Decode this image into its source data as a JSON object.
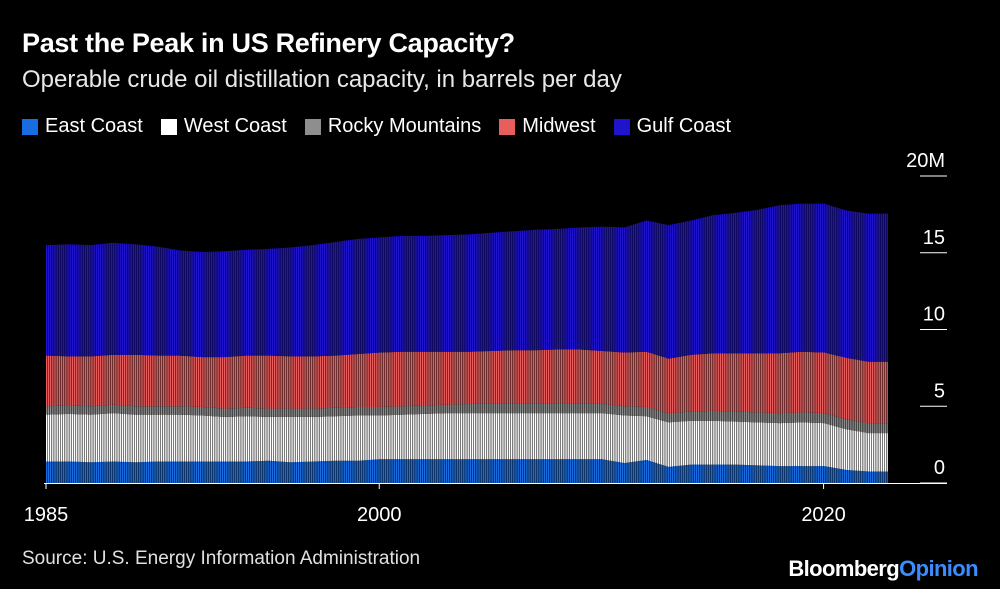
{
  "chart_data": {
    "type": "bar",
    "stacked": true,
    "title": "Past the Peak in US Refinery Capacity?",
    "subtitle": "Operable crude oil distillation capacity, in barrels per day",
    "xlabel": "",
    "ylabel": "",
    "x_ticks": [
      "1985",
      "2000",
      "2020"
    ],
    "x_tick_values": [
      1985,
      2000,
      2020
    ],
    "y_ticks": [
      "20M",
      "15",
      "10",
      "5",
      "0"
    ],
    "y_tick_values": [
      20,
      15,
      10,
      5,
      0
    ],
    "ylim": [
      0,
      20
    ],
    "xlim": [
      1985,
      2022.9
    ],
    "legend_position": "top-left",
    "colors": {
      "east_coast": "#1a6de0",
      "west_coast": "#ffffff",
      "rocky_mountains": "#8e8e8e",
      "midwest": "#e85e5e",
      "gulf_coast": "#1f13cc"
    },
    "legend": [
      "East Coast",
      "West Coast",
      "Rocky Mountains",
      "Midwest",
      "Gulf Coast"
    ],
    "series": [
      {
        "name": "East Coast",
        "color": "#1a6de0",
        "x": [
          1985,
          1986,
          1987,
          1988,
          1989,
          1990,
          1991,
          1992,
          1993,
          1994,
          1995,
          1996,
          1997,
          1998,
          1999,
          2000,
          2001,
          2002,
          2003,
          2004,
          2005,
          2006,
          2007,
          2008,
          2009,
          2010,
          2011,
          2012,
          2013,
          2014,
          2015,
          2016,
          2017,
          2018,
          2019,
          2020,
          2021,
          2022
        ],
        "values": [
          1.4,
          1.4,
          1.35,
          1.4,
          1.35,
          1.4,
          1.4,
          1.4,
          1.4,
          1.4,
          1.45,
          1.35,
          1.4,
          1.45,
          1.45,
          1.55,
          1.55,
          1.55,
          1.55,
          1.55,
          1.55,
          1.55,
          1.55,
          1.55,
          1.55,
          1.55,
          1.3,
          1.5,
          1.05,
          1.2,
          1.2,
          1.2,
          1.15,
          1.1,
          1.1,
          1.1,
          0.85,
          0.75
        ]
      },
      {
        "name": "West Coast",
        "color": "#ffffff",
        "x": [
          1985,
          1986,
          1987,
          1988,
          1989,
          1990,
          1991,
          1992,
          1993,
          1994,
          1995,
          1996,
          1997,
          1998,
          1999,
          2000,
          2001,
          2002,
          2003,
          2004,
          2005,
          2006,
          2007,
          2008,
          2009,
          2010,
          2011,
          2012,
          2013,
          2014,
          2015,
          2016,
          2017,
          2018,
          2019,
          2020,
          2021,
          2022
        ],
        "values": [
          3.05,
          3.1,
          3.1,
          3.15,
          3.1,
          3.05,
          3.05,
          3.0,
          2.9,
          2.95,
          2.85,
          2.95,
          2.9,
          2.9,
          2.95,
          2.85,
          2.9,
          2.95,
          3.0,
          3.0,
          3.0,
          3.0,
          3.0,
          3.0,
          3.0,
          3.0,
          3.1,
          2.85,
          2.9,
          2.85,
          2.85,
          2.8,
          2.8,
          2.8,
          2.85,
          2.8,
          2.65,
          2.5
        ]
      },
      {
        "name": "Rocky Mountains",
        "color": "#8e8e8e",
        "x": [
          1985,
          1986,
          1987,
          1988,
          1989,
          1990,
          1991,
          1992,
          1993,
          1994,
          1995,
          1996,
          1997,
          1998,
          1999,
          2000,
          2001,
          2002,
          2003,
          2004,
          2005,
          2006,
          2007,
          2008,
          2009,
          2010,
          2011,
          2012,
          2013,
          2014,
          2015,
          2016,
          2017,
          2018,
          2019,
          2020,
          2021,
          2022
        ],
        "values": [
          0.55,
          0.55,
          0.55,
          0.55,
          0.55,
          0.55,
          0.55,
          0.55,
          0.55,
          0.55,
          0.55,
          0.55,
          0.55,
          0.55,
          0.55,
          0.55,
          0.55,
          0.55,
          0.55,
          0.6,
          0.6,
          0.6,
          0.6,
          0.6,
          0.6,
          0.6,
          0.6,
          0.6,
          0.6,
          0.6,
          0.65,
          0.65,
          0.65,
          0.65,
          0.65,
          0.65,
          0.65,
          0.65
        ]
      },
      {
        "name": "Midwest",
        "color": "#e85e5e",
        "x": [
          1985,
          1986,
          1987,
          1988,
          1989,
          1990,
          1991,
          1992,
          1993,
          1994,
          1995,
          1996,
          1997,
          1998,
          1999,
          2000,
          2001,
          2002,
          2003,
          2004,
          2005,
          2006,
          2007,
          2008,
          2009,
          2010,
          2011,
          2012,
          2013,
          2014,
          2015,
          2016,
          2017,
          2018,
          2019,
          2020,
          2021,
          2022
        ],
        "values": [
          3.3,
          3.2,
          3.25,
          3.25,
          3.35,
          3.3,
          3.3,
          3.25,
          3.35,
          3.4,
          3.45,
          3.4,
          3.4,
          3.4,
          3.45,
          3.55,
          3.55,
          3.5,
          3.45,
          3.4,
          3.45,
          3.5,
          3.5,
          3.55,
          3.55,
          3.45,
          3.5,
          3.6,
          3.55,
          3.7,
          3.75,
          3.8,
          3.85,
          3.9,
          3.95,
          3.95,
          4.0,
          4.0
        ]
      },
      {
        "name": "Gulf Coast",
        "color": "#1f13cc",
        "x": [
          1985,
          1986,
          1987,
          1988,
          1989,
          1990,
          1991,
          1992,
          1993,
          1994,
          1995,
          1996,
          1997,
          1998,
          1999,
          2000,
          2001,
          2002,
          2003,
          2004,
          2005,
          2006,
          2007,
          2008,
          2009,
          2010,
          2011,
          2012,
          2013,
          2014,
          2015,
          2016,
          2017,
          2018,
          2019,
          2020,
          2021,
          2022
        ],
        "values": [
          7.2,
          7.3,
          7.25,
          7.3,
          7.2,
          7.1,
          6.85,
          6.85,
          6.9,
          6.9,
          6.95,
          7.1,
          7.25,
          7.4,
          7.5,
          7.5,
          7.55,
          7.55,
          7.6,
          7.65,
          7.7,
          7.75,
          7.85,
          7.85,
          7.95,
          8.1,
          8.15,
          8.55,
          8.7,
          8.75,
          9.0,
          9.15,
          9.35,
          9.65,
          9.65,
          9.7,
          9.6,
          9.65
        ]
      }
    ]
  },
  "footer": {
    "source": "Source: U.S. Energy Information Administration",
    "brand_main": "Bloomberg",
    "brand_accent": "Opinion"
  }
}
